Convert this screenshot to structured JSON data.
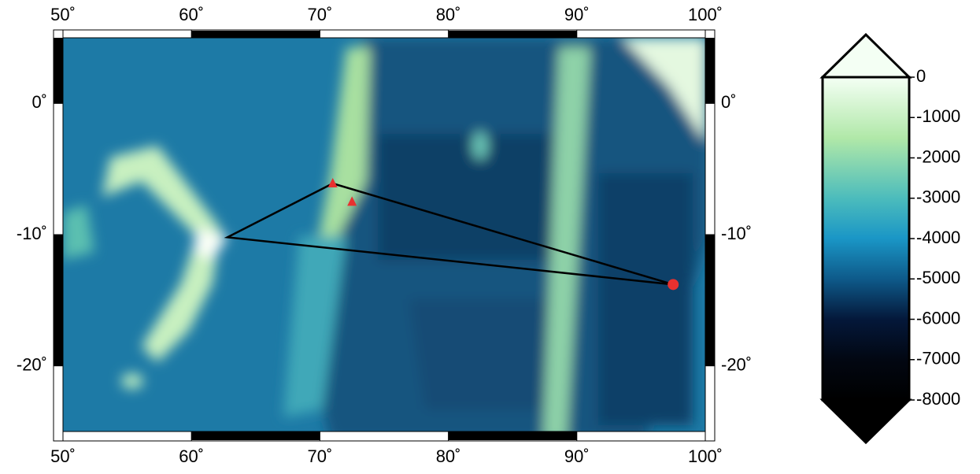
{
  "chart_data": {
    "type": "map",
    "xlim": [
      50,
      100
    ],
    "ylim": [
      -25,
      5
    ],
    "xticks": [
      {
        "value": 50,
        "label": "50˚"
      },
      {
        "value": 60,
        "label": "60˚"
      },
      {
        "value": 70,
        "label": "70˚"
      },
      {
        "value": 80,
        "label": "80˚"
      },
      {
        "value": 90,
        "label": "90˚"
      },
      {
        "value": 100,
        "label": "100˚"
      }
    ],
    "yticks": [
      {
        "value": 0,
        "label": "0˚"
      },
      {
        "value": -10,
        "label": "-10˚"
      },
      {
        "value": -20,
        "label": "-20˚"
      }
    ],
    "polygon": {
      "x": [
        62.8,
        71.0,
        97.5
      ],
      "y": [
        -10.2,
        -6.1,
        -13.8
      ],
      "color": "#000000"
    },
    "markers": [
      {
        "marker": "triangle",
        "color": "#e8312f",
        "x": [
          71.0,
          72.5
        ],
        "y": [
          -6.1,
          -7.5
        ]
      },
      {
        "marker": "circle",
        "color": "#e8312f",
        "x": [
          97.5
        ],
        "y": [
          -13.8
        ]
      }
    ],
    "colorbar": {
      "lim": [
        -8000,
        0
      ],
      "ticks": [
        0,
        -1000,
        -2000,
        -3000,
        -4000,
        -5000,
        -6000,
        -7000,
        -8000
      ]
    }
  }
}
